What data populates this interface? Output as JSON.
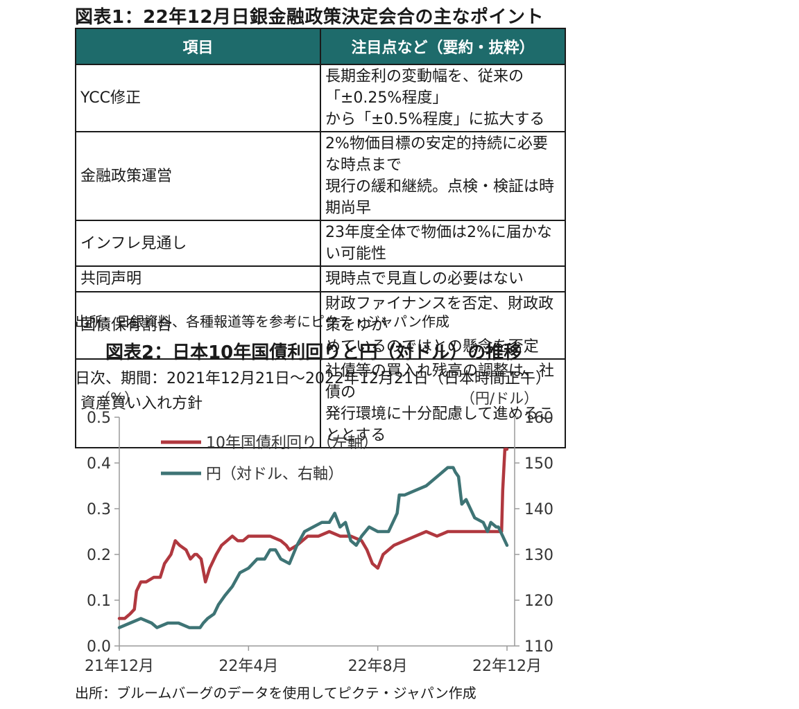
{
  "table1": {
    "title": "図表1：22年12月日銀金融政策決定会合の主なポイント",
    "headers": [
      "項目",
      "注目点など（要約・抜粋）"
    ],
    "rows": [
      {
        "item": "YCC修正",
        "lines": [
          "長期金利の変動幅を、従来の「±0.25%程度」",
          "から「±0.5%程度」に拡大する"
        ]
      },
      {
        "item": "金融政策運営",
        "lines": [
          "2%物価目標の安定的持続に必要な時点まで",
          "現行の緩和継続。点検・検証は時期尚早"
        ]
      },
      {
        "item": "インフレ見通し",
        "lines": [
          "23年度全体で物価は2%に届かない可能性"
        ]
      },
      {
        "item": "共同声明",
        "lines": [
          "現時点で見直しの必要はない"
        ]
      },
      {
        "item": "国債保有割合",
        "lines": [
          "財政ファイナンスを否定、財政政策をゆが",
          "めているのではとの懸念を否定"
        ]
      },
      {
        "item": "資産買い入れ方針",
        "lines": [
          "社債等の買入れ残高の調整は、社債の",
          "発行環境に十分配慮して進めることとする"
        ]
      }
    ],
    "source": "出所：日銀資料、各種報道等を参考にピクテ・ジャパン作成"
  },
  "chart_data": {
    "type": "line",
    "title": "図表2：日本10年国債利回りと円（対ドル）の推移",
    "subtitle": "日次、期間：2021年12月21日～2022年12月21日（日本時間正午）",
    "left_unit": "（%）",
    "right_unit": "（円/ドル）",
    "x_ticks": [
      "21年12月",
      "22年4月",
      "22年8月",
      "22年12月"
    ],
    "x_tick_days": [
      0,
      120,
      240,
      360
    ],
    "left_ylim": [
      0,
      0.5
    ],
    "left_ticks": [
      "0.0",
      "0.1",
      "0.2",
      "0.3",
      "0.4",
      "0.5"
    ],
    "right_ylim": [
      110,
      160
    ],
    "right_ticks": [
      "110",
      "120",
      "130",
      "140",
      "150",
      "160"
    ],
    "legend_position": "top-left",
    "series": [
      {
        "name": "10年国債利回り（左軸）",
        "axis": "left",
        "color": "#b0383f",
        "x": [
          0,
          5,
          10,
          14,
          16,
          20,
          25,
          32,
          38,
          42,
          48,
          52,
          56,
          62,
          66,
          70,
          72,
          76,
          80,
          84,
          90,
          95,
          100,
          105,
          110,
          115,
          120,
          130,
          140,
          150,
          155,
          158,
          165,
          175,
          185,
          195,
          205,
          215,
          225,
          230,
          235,
          240,
          245,
          255,
          265,
          275,
          285,
          295,
          305,
          315,
          325,
          335,
          345,
          350,
          355,
          356,
          358,
          360
        ],
        "y": [
          0.06,
          0.06,
          0.07,
          0.08,
          0.12,
          0.14,
          0.14,
          0.15,
          0.15,
          0.18,
          0.2,
          0.23,
          0.22,
          0.21,
          0.19,
          0.2,
          0.2,
          0.19,
          0.14,
          0.17,
          0.2,
          0.22,
          0.23,
          0.24,
          0.23,
          0.23,
          0.24,
          0.24,
          0.24,
          0.23,
          0.22,
          0.21,
          0.22,
          0.24,
          0.24,
          0.25,
          0.24,
          0.24,
          0.23,
          0.21,
          0.18,
          0.17,
          0.2,
          0.22,
          0.23,
          0.24,
          0.25,
          0.24,
          0.25,
          0.25,
          0.25,
          0.25,
          0.25,
          0.25,
          0.25,
          0.34,
          0.43,
          0.43
        ]
      },
      {
        "name": "円（対ドル、右軸）",
        "axis": "right",
        "color": "#3e7475",
        "x": [
          0,
          10,
          20,
          30,
          35,
          45,
          55,
          65,
          75,
          78,
          82,
          88,
          92,
          98,
          105,
          112,
          120,
          128,
          135,
          140,
          145,
          150,
          158,
          165,
          172,
          180,
          188,
          195,
          200,
          205,
          210,
          215,
          220,
          225,
          232,
          240,
          250,
          258,
          260,
          265,
          275,
          285,
          295,
          305,
          310,
          312,
          315,
          318,
          322,
          330,
          338,
          342,
          345,
          350,
          352,
          356,
          360
        ],
        "y": [
          114,
          115,
          116,
          115,
          114,
          115,
          115,
          114,
          114,
          115,
          116,
          117,
          119,
          121,
          123,
          126,
          127,
          129,
          129,
          131,
          131,
          129,
          128,
          132,
          135,
          136,
          137,
          137,
          139,
          136,
          137,
          133,
          132,
          134,
          136,
          135,
          135,
          139,
          143,
          143,
          144,
          145,
          147,
          149,
          149,
          148,
          147,
          141,
          142,
          138,
          137,
          135,
          137,
          136,
          136,
          134,
          132
        ]
      }
    ],
    "source": "出所：ブルームバーグのデータを使用してピクテ・ジャパン作成"
  }
}
